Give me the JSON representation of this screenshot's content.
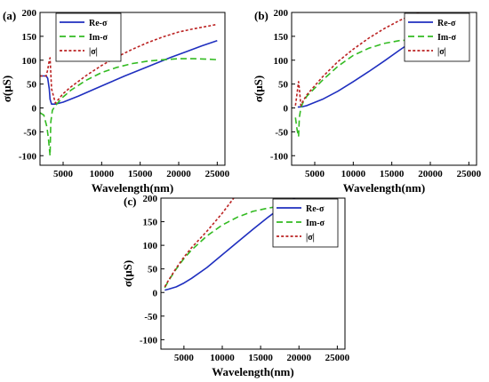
{
  "chart_data": [
    {
      "panel": "(a)",
      "type": "line",
      "xlabel": "Wavelength(nm)",
      "ylabel": "σ(μS)",
      "xlim": [
        2000,
        26000
      ],
      "ylim": [
        -120,
        200
      ],
      "xticks": [
        5000,
        10000,
        15000,
        20000,
        25000
      ],
      "yticks": [
        -100,
        -50,
        0,
        50,
        100,
        150,
        200
      ],
      "grid": false,
      "legend_position": "top-left",
      "series": [
        {
          "name": "Re-σ",
          "color": "#1f2fbf",
          "dash": "solid",
          "x": [
            2000,
            2800,
            3000,
            3200,
            3300,
            3500,
            4000,
            5000,
            7000,
            9000,
            11000,
            13000,
            15000,
            17000,
            19000,
            21000,
            23000,
            25000
          ],
          "y": [
            67,
            67,
            62,
            40,
            18,
            8,
            8,
            12,
            25,
            39,
            53,
            67,
            80,
            93,
            106,
            118,
            130,
            141
          ]
        },
        {
          "name": "Im-σ",
          "color": "#33bb22",
          "dash": "dashed",
          "x": [
            2000,
            2500,
            2900,
            3100,
            3300,
            3400,
            3600,
            4000,
            5000,
            6000,
            8000,
            10000,
            12000,
            14000,
            16000,
            18000,
            20000,
            22000,
            24000,
            25000
          ],
          "y": [
            -10,
            -15,
            -40,
            -65,
            -100,
            -30,
            -5,
            5,
            23,
            37,
            58,
            74,
            85,
            93,
            98,
            101,
            103,
            103,
            102,
            101
          ]
        },
        {
          "name": "|σ|",
          "color": "#bb2222",
          "dash": "dotted",
          "x": [
            2000,
            2800,
            3000,
            3200,
            3300,
            3500,
            4000,
            5000,
            6000,
            8000,
            10000,
            12000,
            14000,
            16000,
            18000,
            20000,
            22000,
            24000,
            25000
          ],
          "y": [
            67,
            67,
            80,
            100,
            105,
            40,
            10,
            30,
            44,
            68,
            89,
            107,
            123,
            137,
            149,
            159,
            166,
            172,
            175
          ]
        }
      ]
    },
    {
      "panel": "(b)",
      "type": "line",
      "xlabel": "Wavelength(nm)",
      "ylabel": "σ(μS)",
      "xlim": [
        2000,
        26000
      ],
      "ylim": [
        -120,
        200
      ],
      "xticks": [
        5000,
        10000,
        15000,
        20000,
        25000
      ],
      "yticks": [
        -100,
        -50,
        0,
        50,
        100,
        150,
        200
      ],
      "grid": false,
      "legend_position": "top-right",
      "series": [
        {
          "name": "Re-σ",
          "color": "#1f2fbf",
          "dash": "solid",
          "x": [
            2800,
            3000,
            3500,
            4000,
            6000,
            8000,
            10000,
            12000,
            14000,
            16000,
            18000,
            20000,
            22000,
            24000,
            25000
          ],
          "y": [
            2,
            2,
            3,
            5,
            18,
            35,
            55,
            76,
            98,
            121,
            143,
            163,
            177,
            186,
            190
          ]
        },
        {
          "name": "Im-σ",
          "color": "#33bb22",
          "dash": "dashed",
          "x": [
            2500,
            2700,
            2900,
            3000,
            3200,
            3500,
            4000,
            6000,
            8000,
            10000,
            12000,
            14000,
            16000,
            18000,
            19000
          ],
          "y": [
            -20,
            -45,
            -60,
            -20,
            0,
            12,
            25,
            58,
            87,
            110,
            125,
            135,
            141,
            143,
            143
          ]
        },
        {
          "name": "|σ|",
          "color": "#bb2222",
          "dash": "dotted",
          "x": [
            2500,
            2700,
            2900,
            3000,
            3200,
            3500,
            4000,
            6000,
            8000,
            10000,
            12000,
            14000,
            16000,
            18000,
            19000
          ],
          "y": [
            5,
            30,
            55,
            40,
            5,
            15,
            28,
            65,
            97,
            123,
            146,
            166,
            183,
            197,
            202
          ]
        }
      ]
    },
    {
      "panel": "(c)",
      "type": "line",
      "xlabel": "Wavelength(nm)",
      "ylabel": "σ(μS)",
      "xlim": [
        2000,
        26000
      ],
      "ylim": [
        -120,
        200
      ],
      "xticks": [
        5000,
        10000,
        15000,
        20000,
        25000
      ],
      "yticks": [
        -100,
        -50,
        0,
        50,
        100,
        150,
        200
      ],
      "grid": false,
      "legend_position": "top-right",
      "series": [
        {
          "name": "Re-σ",
          "color": "#1f2fbf",
          "dash": "solid",
          "x": [
            2500,
            3000,
            4000,
            5000,
            6000,
            8000,
            10000,
            12000,
            14000,
            16000,
            18000,
            19500
          ],
          "y": [
            5,
            7,
            12,
            20,
            30,
            53,
            80,
            107,
            134,
            160,
            184,
            200
          ]
        },
        {
          "name": "Im-σ",
          "color": "#33bb22",
          "dash": "dashed",
          "x": [
            2500,
            3000,
            4000,
            5000,
            6000,
            8000,
            10000,
            12000,
            14000,
            16000,
            18000,
            20000,
            22000,
            24000,
            25000
          ],
          "y": [
            10,
            25,
            50,
            72,
            90,
            120,
            143,
            160,
            172,
            179,
            184,
            186,
            186,
            185,
            184
          ]
        },
        {
          "name": "|σ|",
          "color": "#bb2222",
          "dash": "dotted",
          "x": [
            2500,
            3000,
            4000,
            5000,
            6000,
            8000,
            10000,
            11500
          ],
          "y": [
            12,
            26,
            52,
            75,
            95,
            130,
            168,
            200
          ]
        }
      ]
    }
  ]
}
